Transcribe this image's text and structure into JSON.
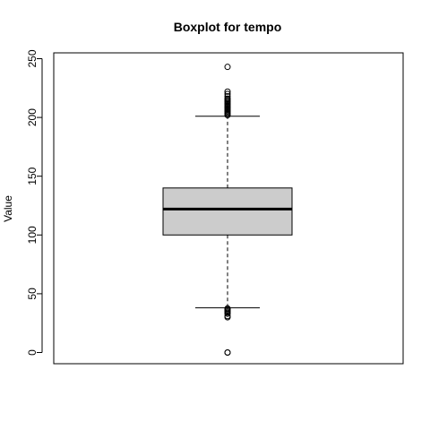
{
  "chart_data": {
    "type": "boxplot",
    "title": "Boxplot for tempo",
    "xlabel": "",
    "ylabel": "Value",
    "ylim": [
      -10,
      255
    ],
    "yticks": [
      0,
      50,
      100,
      150,
      200,
      250
    ],
    "grid": false,
    "legend": "none",
    "box_fill": "#cccccc",
    "series": [
      {
        "stats": {
          "lower_whisker": 38,
          "q1": 100,
          "median": 122,
          "q3": 140,
          "upper_whisker": 201
        },
        "outliers": [
          0,
          0,
          30,
          31,
          33,
          34,
          35,
          36,
          37,
          37.5,
          202,
          203,
          204,
          205,
          206,
          207,
          208,
          209,
          210,
          211,
          212,
          213,
          214,
          215,
          216,
          218,
          220,
          222,
          243
        ]
      }
    ]
  }
}
